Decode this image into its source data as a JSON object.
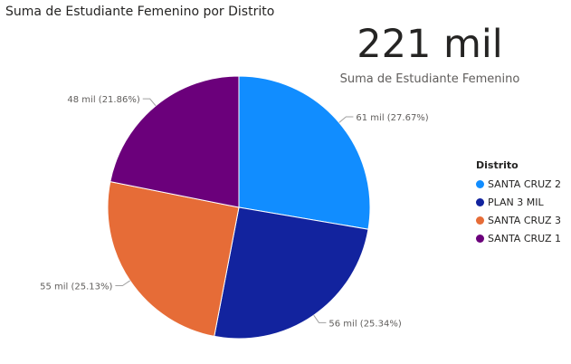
{
  "title": "Suma de Estudiante Femenino por Distrito",
  "kpi": {
    "value": "221 mil",
    "label": "Suma de Estudiante Femenino"
  },
  "legend_title": "Distrito",
  "chart_data": {
    "type": "pie",
    "title": "Suma de Estudiante Femenino por Distrito",
    "legend_title": "Distrito",
    "legend_position": "right",
    "slices": [
      {
        "label": "SANTA CRUZ 2",
        "value": 61,
        "percent": 27.67,
        "data_label": "61 mil (27.67%)",
        "color": "#118DFF"
      },
      {
        "label": "PLAN 3 MIL",
        "value": 56,
        "percent": 25.34,
        "data_label": "56 mil (25.34%)",
        "color": "#12239E"
      },
      {
        "label": "SANTA CRUZ 3",
        "value": 55,
        "percent": 25.13,
        "data_label": "55 mil (25.13%)",
        "color": "#E66C37"
      },
      {
        "label": "SANTA CRUZ 1",
        "value": 48,
        "percent": 21.86,
        "data_label": "48 mil (21.86%)",
        "color": "#6B007B"
      }
    ]
  }
}
